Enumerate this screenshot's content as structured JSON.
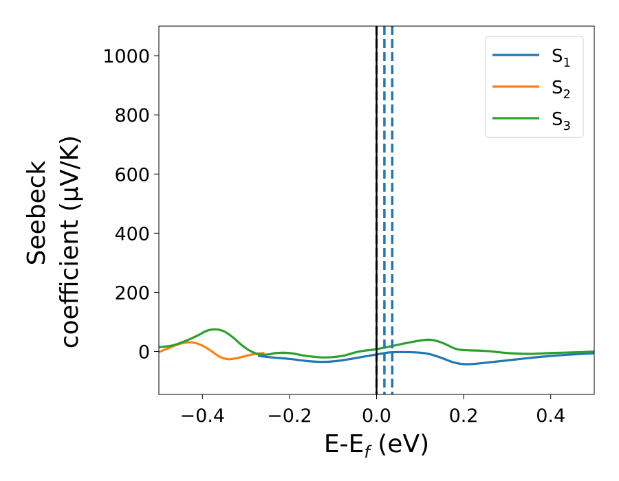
{
  "chart_data": {
    "type": "line",
    "xlabel": {
      "main": "E-E",
      "sub": "f",
      "tail": " (eV)"
    },
    "ylabel": {
      "line1": "Seebeck",
      "line2": "coefficient  (μV/K)"
    },
    "xlim": [
      -0.5,
      0.5
    ],
    "ylim": [
      -145,
      1100
    ],
    "xticks": [
      -0.4,
      -0.2,
      0.0,
      0.2,
      0.4
    ],
    "xtick_labels": [
      "−0.4",
      "−0.2",
      "0.0",
      "0.2",
      "0.4"
    ],
    "yticks": [
      0,
      200,
      400,
      600,
      800,
      1000
    ],
    "ytick_labels": [
      "0",
      "200",
      "400",
      "600",
      "800",
      "1000"
    ],
    "grid": false,
    "legend_position": "top-right",
    "series": [
      {
        "name": "S",
        "sub": "1",
        "color": "#1f77b4",
        "x": [
          -0.27,
          -0.24,
          -0.2,
          -0.16,
          -0.12,
          -0.08,
          -0.04,
          0.0,
          0.03,
          0.06,
          0.09,
          0.12,
          0.15,
          0.18,
          0.21,
          0.25,
          0.3,
          0.35,
          0.4,
          0.45,
          0.5
        ],
        "y": [
          -15,
          -20,
          -25,
          -32,
          -35,
          -30,
          -20,
          -10,
          -3,
          -2,
          -3,
          -8,
          -22,
          -38,
          -43,
          -38,
          -30,
          -22,
          -15,
          -10,
          -6
        ]
      },
      {
        "name": "S",
        "sub": "2",
        "color": "#ff7f0e",
        "x": [
          -0.5,
          -0.48,
          -0.46,
          -0.44,
          -0.42,
          -0.4,
          -0.38,
          -0.36,
          -0.34,
          -0.32,
          -0.3,
          -0.28,
          -0.26
        ],
        "y": [
          -2,
          10,
          22,
          30,
          30,
          20,
          2,
          -18,
          -26,
          -22,
          -15,
          -8,
          -5
        ]
      },
      {
        "name": "S",
        "sub": "3",
        "color": "#2ca02c",
        "x": [
          -0.5,
          -0.47,
          -0.44,
          -0.41,
          -0.39,
          -0.37,
          -0.35,
          -0.33,
          -0.31,
          -0.29,
          -0.27,
          -0.25,
          -0.23,
          -0.2,
          -0.16,
          -0.12,
          -0.08,
          -0.04,
          0.0,
          0.04,
          0.08,
          0.12,
          0.15,
          0.18,
          0.2,
          0.25,
          0.3,
          0.35,
          0.4,
          0.45,
          0.5
        ],
        "y": [
          15,
          20,
          35,
          55,
          70,
          75,
          68,
          48,
          22,
          2,
          -10,
          -10,
          -5,
          -5,
          -15,
          -20,
          -15,
          0,
          8,
          20,
          32,
          40,
          30,
          10,
          5,
          2,
          -5,
          -8,
          -5,
          -3,
          0
        ]
      }
    ],
    "vlines": [
      {
        "x": 0.0,
        "color": "#1f77b4",
        "style": "dashed"
      },
      {
        "x": 0.0,
        "color": "#000000",
        "style": "solid"
      },
      {
        "x": 0.018,
        "color": "#1f77b4",
        "style": "dashed"
      },
      {
        "x": 0.036,
        "color": "#1f77b4",
        "style": "dashed"
      }
    ]
  }
}
